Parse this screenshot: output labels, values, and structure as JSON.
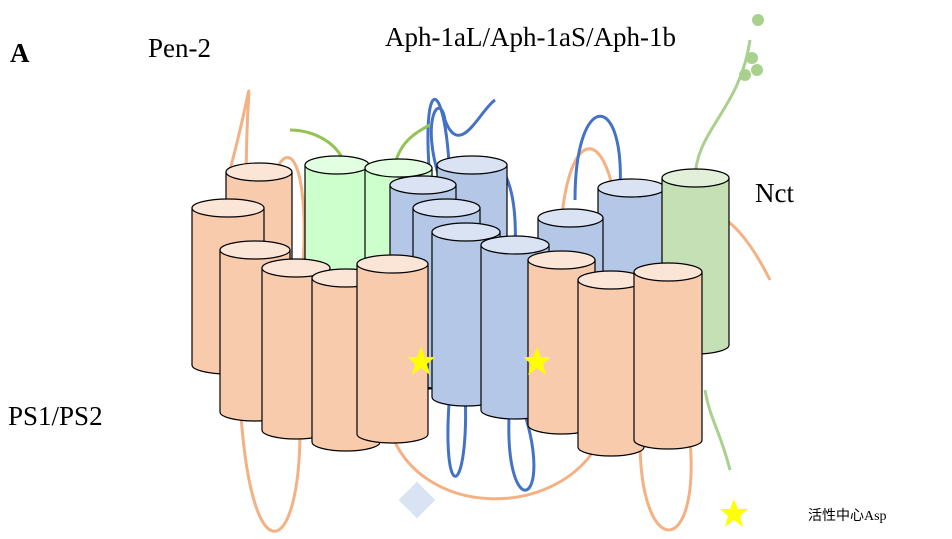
{
  "panel_label": "A",
  "labels": {
    "pen2": "Pen-2",
    "aph1": "Aph-1aL/Aph-1aS/Aph-1b",
    "nct": "Nct",
    "ps": "PS1/PS2"
  },
  "legend": {
    "star": "活性中心Asp"
  }
}
